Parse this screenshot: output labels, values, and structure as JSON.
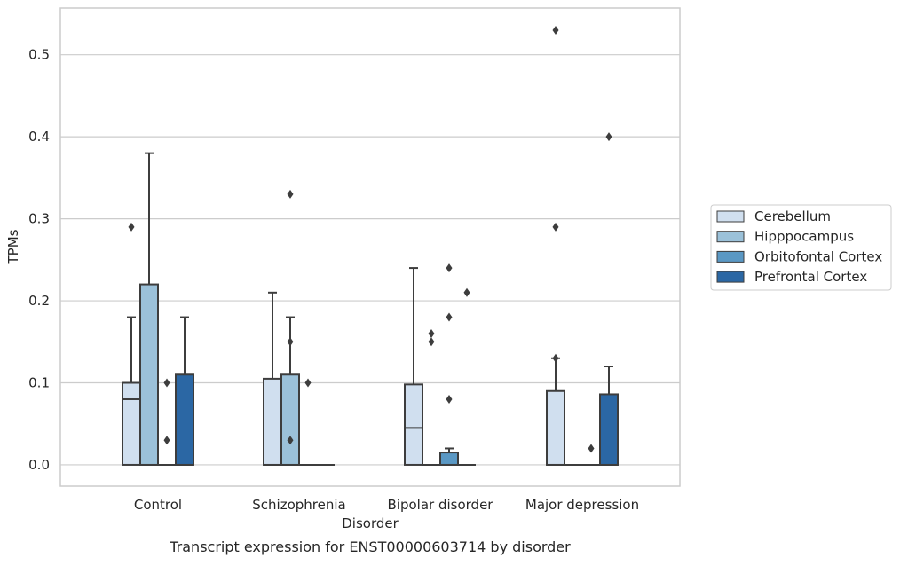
{
  "chart_data": {
    "type": "boxplot",
    "caption": "Transcript expression for ENST00000603714 by disorder",
    "xlabel": "Disorder",
    "ylabel": "TPMs",
    "ylim": [
      -0.026,
      0.557
    ],
    "yticks": [
      "0.0",
      "0.1",
      "0.2",
      "0.3",
      "0.4",
      "0.5"
    ],
    "categories": [
      "Control",
      "Schizophrenia",
      "Bipolar disorder",
      "Major depression"
    ],
    "grid": true,
    "legend_position": "right",
    "series": [
      {
        "name": "Cerebellum",
        "color": "#d0dfef",
        "boxes": [
          {
            "q1": 0.0,
            "median": 0.08,
            "q3": 0.1,
            "whisker_low": 0.0,
            "whisker_high": 0.18,
            "outliers": [
              0.29
            ]
          },
          {
            "q1": 0.0,
            "median": 0.0,
            "q3": 0.105,
            "whisker_low": 0.0,
            "whisker_high": 0.21,
            "outliers": []
          },
          {
            "q1": 0.0,
            "median": 0.045,
            "q3": 0.098,
            "whisker_low": 0.0,
            "whisker_high": 0.24,
            "outliers": []
          },
          {
            "q1": 0.0,
            "median": 0.0,
            "q3": 0.09,
            "whisker_low": 0.0,
            "whisker_high": 0.13,
            "outliers": [
              0.53,
              0.29,
              0.13
            ]
          }
        ]
      },
      {
        "name": "Hipppocampus",
        "color": "#9bc1d9",
        "boxes": [
          {
            "q1": 0.0,
            "median": 0.0,
            "q3": 0.22,
            "whisker_low": 0.0,
            "whisker_high": 0.38,
            "outliers": []
          },
          {
            "q1": 0.0,
            "median": 0.0,
            "q3": 0.11,
            "whisker_low": 0.0,
            "whisker_high": 0.18,
            "outliers": [
              0.33,
              0.15,
              0.03
            ]
          },
          {
            "q1": 0.0,
            "median": 0.0,
            "q3": 0.0,
            "whisker_low": 0.0,
            "whisker_high": 0.0,
            "outliers": [
              0.16,
              0.15
            ]
          },
          {
            "q1": 0.0,
            "median": 0.0,
            "q3": 0.0,
            "whisker_low": 0.0,
            "whisker_high": 0.0,
            "outliers": []
          }
        ]
      },
      {
        "name": "Orbitofontal Cortex",
        "color": "#5a98c4",
        "boxes": [
          {
            "q1": 0.0,
            "median": 0.0,
            "q3": 0.0,
            "whisker_low": 0.0,
            "whisker_high": 0.0,
            "outliers": [
              0.1,
              0.03
            ]
          },
          {
            "q1": 0.0,
            "median": 0.0,
            "q3": 0.0,
            "whisker_low": 0.0,
            "whisker_high": 0.0,
            "outliers": [
              0.1
            ]
          },
          {
            "q1": 0.0,
            "median": 0.0,
            "q3": 0.015,
            "whisker_low": 0.0,
            "whisker_high": 0.02,
            "outliers": [
              0.24,
              0.18,
              0.08
            ]
          },
          {
            "q1": 0.0,
            "median": 0.0,
            "q3": 0.0,
            "whisker_low": 0.0,
            "whisker_high": 0.0,
            "outliers": [
              0.02
            ]
          }
        ]
      },
      {
        "name": "Prefrontal Cortex",
        "color": "#2b67a4",
        "boxes": [
          {
            "q1": 0.0,
            "median": 0.0,
            "q3": 0.11,
            "whisker_low": 0.0,
            "whisker_high": 0.18,
            "outliers": []
          },
          {
            "q1": 0.0,
            "median": 0.0,
            "q3": 0.0,
            "whisker_low": 0.0,
            "whisker_high": 0.0,
            "outliers": []
          },
          {
            "q1": 0.0,
            "median": 0.0,
            "q3": 0.0,
            "whisker_low": 0.0,
            "whisker_high": 0.0,
            "outliers": [
              0.21
            ]
          },
          {
            "q1": 0.0,
            "median": 0.0,
            "q3": 0.086,
            "whisker_low": 0.0,
            "whisker_high": 0.12,
            "outliers": [
              0.4
            ]
          }
        ]
      }
    ]
  }
}
